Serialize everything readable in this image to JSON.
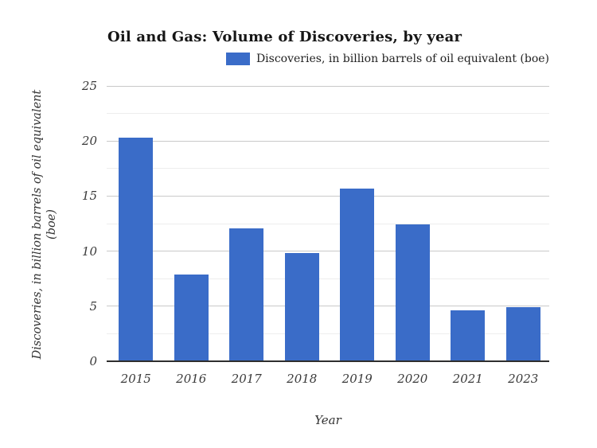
{
  "title": "Oil and Gas: Volume of Discoveries, by year",
  "legend": {
    "label": "Discoveries, in billion barrels of oil equivalent (boe)",
    "swatch_color": "#3a6cc8"
  },
  "axes": {
    "x_title": "Year",
    "y_title_line1": "Discoveries, in billion barrels of oil equivalent",
    "y_title_line2": "(boe)",
    "y_tick_labels": [
      "0",
      "5",
      "10",
      "15",
      "20",
      "25"
    ]
  },
  "chart_data": {
    "type": "bar",
    "title": "Oil and Gas: Volume of Discoveries, by year",
    "xlabel": "Year",
    "ylabel": "Discoveries, in billion barrels of oil equivalent (boe)",
    "categories": [
      "2015",
      "2016",
      "2017",
      "2018",
      "2019",
      "2020",
      "2021",
      "2023"
    ],
    "series": [
      {
        "name": "Discoveries, in billion barrels of oil equivalent (boe)",
        "values": [
          20.3,
          7.9,
          12.1,
          9.8,
          15.7,
          12.4,
          4.6,
          4.9
        ]
      }
    ],
    "ylim": [
      0,
      25
    ],
    "y_major_step": 5,
    "y_minor_step": 2.5,
    "grid": true,
    "legend_position": "top-right",
    "bar_color": "#3a6cc8"
  },
  "colors": {
    "bar": "#3a6cc8",
    "major_gridline": "#c9c9c9",
    "minor_gridline": "#ededed",
    "baseline": "#2e2e2e",
    "title_text": "#161616",
    "tick_text": "#3a3a3a"
  }
}
